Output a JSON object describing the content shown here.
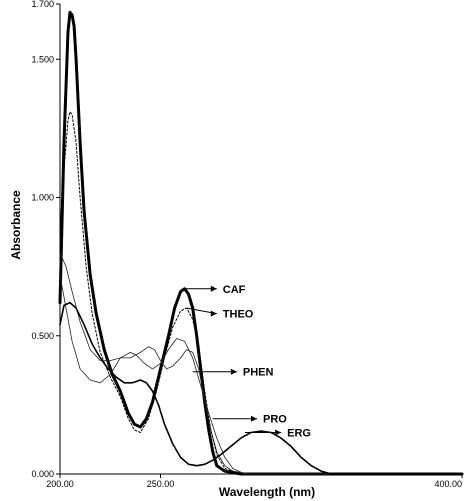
{
  "chart_data": {
    "type": "line",
    "title": "",
    "xlabel": "Wavelength (nm)",
    "ylabel": "Absorbance",
    "xlim": [
      200,
      400
    ],
    "ylim": [
      0,
      1.7
    ],
    "x_ticks": [
      "200.00",
      "250.00",
      "400.00"
    ],
    "y_ticks": [
      "0.000",
      "0.500",
      "1.000",
      "1.500",
      "1.700"
    ],
    "grid": false,
    "series": [
      {
        "name": "CAF",
        "style": "thick",
        "points": [
          [
            200,
            0.62
          ],
          [
            202,
            1.2
          ],
          [
            204,
            1.6
          ],
          [
            205,
            1.67
          ],
          [
            206,
            1.66
          ],
          [
            207,
            1.62
          ],
          [
            208,
            1.5
          ],
          [
            210,
            1.2
          ],
          [
            212,
            0.95
          ],
          [
            215,
            0.72
          ],
          [
            218,
            0.58
          ],
          [
            222,
            0.45
          ],
          [
            226,
            0.36
          ],
          [
            230,
            0.3
          ],
          [
            234,
            0.22
          ],
          [
            237,
            0.18
          ],
          [
            240,
            0.17
          ],
          [
            243,
            0.2
          ],
          [
            246,
            0.26
          ],
          [
            250,
            0.38
          ],
          [
            254,
            0.5
          ],
          [
            257,
            0.6
          ],
          [
            260,
            0.66
          ],
          [
            262,
            0.67
          ],
          [
            264,
            0.65
          ],
          [
            266,
            0.6
          ],
          [
            268,
            0.5
          ],
          [
            270,
            0.38
          ],
          [
            272,
            0.26
          ],
          [
            274,
            0.16
          ],
          [
            276,
            0.08
          ],
          [
            278,
            0.03
          ],
          [
            282,
            0.01
          ],
          [
            290,
            0.0
          ],
          [
            400,
            0.0
          ]
        ]
      },
      {
        "name": "THEO",
        "style": "dotted",
        "points": [
          [
            200,
            0.88
          ],
          [
            202,
            1.1
          ],
          [
            204,
            1.28
          ],
          [
            205,
            1.31
          ],
          [
            206,
            1.3
          ],
          [
            208,
            1.2
          ],
          [
            210,
            1.0
          ],
          [
            213,
            0.75
          ],
          [
            216,
            0.58
          ],
          [
            220,
            0.44
          ],
          [
            225,
            0.35
          ],
          [
            230,
            0.28
          ],
          [
            234,
            0.2
          ],
          [
            237,
            0.16
          ],
          [
            240,
            0.15
          ],
          [
            244,
            0.2
          ],
          [
            248,
            0.3
          ],
          [
            252,
            0.42
          ],
          [
            256,
            0.53
          ],
          [
            260,
            0.59
          ],
          [
            263,
            0.6
          ],
          [
            266,
            0.56
          ],
          [
            269,
            0.46
          ],
          [
            272,
            0.3
          ],
          [
            275,
            0.16
          ],
          [
            278,
            0.07
          ],
          [
            282,
            0.02
          ],
          [
            290,
            0.0
          ],
          [
            400,
            0.0
          ]
        ]
      },
      {
        "name": "PHEN",
        "style": "thin",
        "points": [
          [
            200,
            0.8
          ],
          [
            203,
            0.75
          ],
          [
            206,
            0.66
          ],
          [
            210,
            0.55
          ],
          [
            215,
            0.45
          ],
          [
            220,
            0.41
          ],
          [
            225,
            0.41
          ],
          [
            230,
            0.42
          ],
          [
            235,
            0.42
          ],
          [
            240,
            0.44
          ],
          [
            244,
            0.46
          ],
          [
            247,
            0.45
          ],
          [
            250,
            0.41
          ],
          [
            253,
            0.38
          ],
          [
            256,
            0.39
          ],
          [
            260,
            0.42
          ],
          [
            263,
            0.45
          ],
          [
            266,
            0.44
          ],
          [
            269,
            0.38
          ],
          [
            272,
            0.27
          ],
          [
            275,
            0.16
          ],
          [
            278,
            0.08
          ],
          [
            282,
            0.03
          ],
          [
            286,
            0.01
          ],
          [
            295,
            0.0
          ],
          [
            400,
            0.0
          ]
        ]
      },
      {
        "name": "PRO",
        "style": "thin",
        "points": [
          [
            200,
            0.72
          ],
          [
            203,
            0.6
          ],
          [
            206,
            0.48
          ],
          [
            210,
            0.38
          ],
          [
            215,
            0.34
          ],
          [
            220,
            0.33
          ],
          [
            225,
            0.36
          ],
          [
            230,
            0.42
          ],
          [
            235,
            0.44
          ],
          [
            238,
            0.43
          ],
          [
            242,
            0.4
          ],
          [
            246,
            0.38
          ],
          [
            250,
            0.4
          ],
          [
            254,
            0.45
          ],
          [
            258,
            0.49
          ],
          [
            262,
            0.48
          ],
          [
            266,
            0.42
          ],
          [
            270,
            0.32
          ],
          [
            274,
            0.22
          ],
          [
            278,
            0.13
          ],
          [
            282,
            0.06
          ],
          [
            286,
            0.02
          ],
          [
            292,
            0.0
          ],
          [
            400,
            0.0
          ]
        ]
      },
      {
        "name": "ERG",
        "style": "medium",
        "points": [
          [
            200,
            0.54
          ],
          [
            202,
            0.61
          ],
          [
            205,
            0.62
          ],
          [
            208,
            0.6
          ],
          [
            212,
            0.54
          ],
          [
            216,
            0.47
          ],
          [
            220,
            0.42
          ],
          [
            224,
            0.38
          ],
          [
            228,
            0.35
          ],
          [
            232,
            0.33
          ],
          [
            236,
            0.33
          ],
          [
            240,
            0.34
          ],
          [
            243,
            0.33
          ],
          [
            246,
            0.3
          ],
          [
            249,
            0.25
          ],
          [
            252,
            0.18
          ],
          [
            256,
            0.11
          ],
          [
            260,
            0.06
          ],
          [
            264,
            0.035
          ],
          [
            268,
            0.03
          ],
          [
            272,
            0.035
          ],
          [
            276,
            0.05
          ],
          [
            280,
            0.07
          ],
          [
            285,
            0.1
          ],
          [
            290,
            0.13
          ],
          [
            295,
            0.15
          ],
          [
            300,
            0.155
          ],
          [
            305,
            0.15
          ],
          [
            310,
            0.13
          ],
          [
            315,
            0.1
          ],
          [
            320,
            0.06
          ],
          [
            325,
            0.03
          ],
          [
            330,
            0.01
          ],
          [
            335,
            0.0
          ],
          [
            400,
            0.0
          ]
        ]
      }
    ],
    "annotations": [
      {
        "text": "CAF",
        "x": 280,
        "y": 0.67
      },
      {
        "text": "THEO",
        "x": 280,
        "y": 0.58
      },
      {
        "text": "PHEN",
        "x": 290,
        "y": 0.37
      },
      {
        "text": "PRO",
        "x": 300,
        "y": 0.2
      },
      {
        "text": "ERG",
        "x": 312,
        "y": 0.15
      }
    ]
  }
}
